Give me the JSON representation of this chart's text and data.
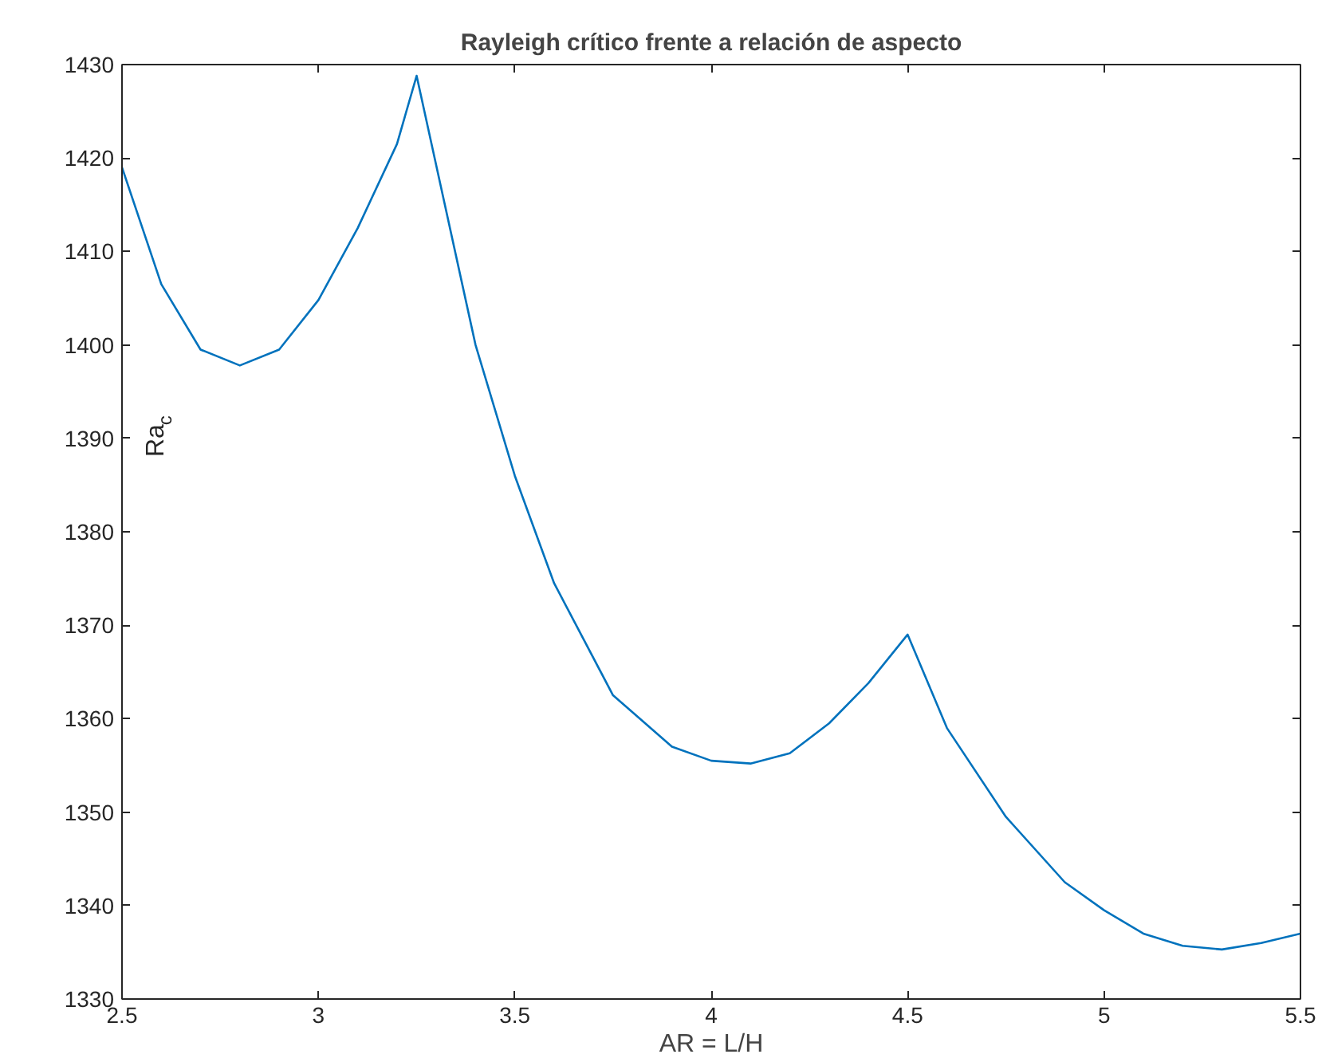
{
  "chart_data": {
    "type": "line",
    "title": "Rayleigh crítico frente a relación de aspecto",
    "xlabel": "AR = L/H",
    "ylabel": "Ra$_{c}$",
    "x": [
      2.5,
      2.6,
      2.7,
      2.8,
      2.9,
      3.0,
      3.1,
      3.2,
      3.25,
      3.4,
      3.5,
      3.6,
      3.75,
      3.9,
      4.0,
      4.1,
      4.2,
      4.3,
      4.4,
      4.5,
      4.6,
      4.75,
      4.9,
      5.0,
      5.1,
      5.2,
      5.3,
      5.4,
      5.5
    ],
    "series": [
      {
        "color": "#0072bd",
        "values": [
          1419,
          1406.5,
          1399.5,
          1397.8,
          1399.5,
          1404.8,
          1412.5,
          1421.5,
          1428.8,
          1400,
          1386,
          1374.5,
          1362.5,
          1357,
          1355.5,
          1355.2,
          1356.3,
          1359.5,
          1363.8,
          1369,
          1359,
          1349.5,
          1342.5,
          1339.5,
          1337,
          1335.7,
          1335.3,
          1336,
          1337
        ]
      }
    ],
    "xlim": [
      2.5,
      5.5
    ],
    "ylim": [
      1330,
      1430
    ],
    "xticks": [
      2.5,
      3,
      3.5,
      4,
      4.5,
      5,
      5.5
    ],
    "yticks": [
      1330,
      1340,
      1350,
      1360,
      1370,
      1380,
      1390,
      1400,
      1410,
      1420,
      1430
    ],
    "grid": false
  }
}
